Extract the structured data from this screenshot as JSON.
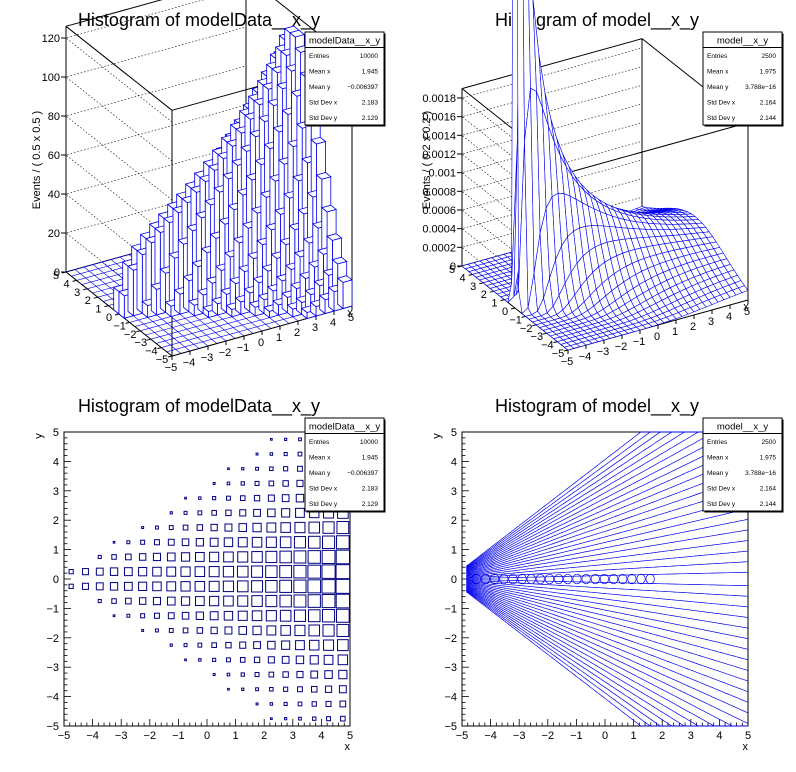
{
  "chart_data": [
    {
      "type": "lego3d",
      "title": "Histogram of modelData__x_y",
      "xlabel": "x",
      "ylabel": "y",
      "zlabel": "Events / ( 0.5 x 0.5 )",
      "xlim": [
        -5,
        5
      ],
      "ylim": [
        -5,
        5
      ],
      "zlim": [
        0,
        126
      ],
      "x_ticks": [
        "−5",
        "−4",
        "−3",
        "−2",
        "−1",
        "0",
        "1",
        "2",
        "3",
        "4",
        "5"
      ],
      "y_ticks": [
        "−5",
        "−4",
        "−3",
        "−2",
        "−1",
        "0",
        "1",
        "2",
        "3",
        "4",
        "5"
      ],
      "z_ticks": [
        "0",
        "20",
        "40",
        "60",
        "80",
        "100",
        "120"
      ],
      "z_tick_values": [
        0,
        20,
        40,
        60,
        80,
        100,
        120
      ],
      "stats": {
        "name": "modelData__x_y",
        "rows": [
          {
            "label": "Entries",
            "value": "10000"
          },
          {
            "label": "Mean x",
            "value": "1.945"
          },
          {
            "label": "Mean y",
            "value": "−0.006397"
          },
          {
            "label": "Std Dev x",
            "value": "2.183"
          },
          {
            "label": "Std Dev y",
            "value": "2.129"
          }
        ]
      }
    },
    {
      "type": "surface3d",
      "title": "Histogram of model__x_y",
      "xlabel": "x",
      "ylabel": "y",
      "zlabel": "Events / ( 0.2 x 0.2 )",
      "xlim": [
        -5,
        5
      ],
      "ylim": [
        -5,
        5
      ],
      "zlim": [
        0,
        0.0019
      ],
      "x_ticks": [
        "−5",
        "−4",
        "−3",
        "−2",
        "−1",
        "0",
        "1",
        "2",
        "3",
        "4",
        "5"
      ],
      "y_ticks": [
        "−5",
        "−4",
        "−3",
        "−2",
        "−1",
        "0",
        "1",
        "2",
        "3",
        "4",
        "5"
      ],
      "z_ticks": [
        "0",
        "0.0002",
        "0.0004",
        "0.0006",
        "0.0008",
        "0.001",
        "0.0012",
        "0.0014",
        "0.0016",
        "0.0018"
      ],
      "z_tick_values": [
        0,
        0.0002,
        0.0004,
        0.0006,
        0.0008,
        0.001,
        0.0012,
        0.0014,
        0.0016,
        0.0018
      ],
      "stats": {
        "name": "model__x_y",
        "rows": [
          {
            "label": "Entries",
            "value": "2500"
          },
          {
            "label": "Mean x",
            "value": "1.975"
          },
          {
            "label": "Mean y",
            "value": "3.788e−16"
          },
          {
            "label": "Std Dev x",
            "value": "2.164"
          },
          {
            "label": "Std Dev y",
            "value": "2.144"
          }
        ]
      }
    },
    {
      "type": "box2d",
      "title": "Histogram of modelData__x_y",
      "xlabel": "x",
      "ylabel": "y",
      "xlim": [
        -5,
        5
      ],
      "ylim": [
        -5,
        5
      ],
      "x_ticks": [
        "−5",
        "−4",
        "−3",
        "−2",
        "−1",
        "0",
        "1",
        "2",
        "3",
        "4",
        "5"
      ],
      "y_ticks": [
        "−5",
        "−4",
        "−3",
        "−2",
        "−1",
        "0",
        "1",
        "2",
        "3",
        "4",
        "5"
      ],
      "stats": {
        "name": "modelData__x_y",
        "rows": [
          {
            "label": "Entries",
            "value": "10000"
          },
          {
            "label": "Mean x",
            "value": "1.945"
          },
          {
            "label": "Mean y",
            "value": "−0.006397"
          },
          {
            "label": "Std Dev x",
            "value": "2.183"
          },
          {
            "label": "Std Dev y",
            "value": "2.129"
          }
        ]
      }
    },
    {
      "type": "contour",
      "title": "Histogram of model__x_y",
      "xlabel": "x",
      "ylabel": "y",
      "xlim": [
        -5,
        5
      ],
      "ylim": [
        -5,
        5
      ],
      "x_ticks": [
        "−5",
        "−4",
        "−3",
        "−2",
        "−1",
        "0",
        "1",
        "2",
        "3",
        "4",
        "5"
      ],
      "y_ticks": [
        "−5",
        "−4",
        "−3",
        "−2",
        "−1",
        "0",
        "1",
        "2",
        "3",
        "4",
        "5"
      ],
      "stats": {
        "name": "model__x_y",
        "rows": [
          {
            "label": "Entries",
            "value": "2500"
          },
          {
            "label": "Mean x",
            "value": "1.975"
          },
          {
            "label": "Mean y",
            "value": "3.788e−16"
          },
          {
            "label": "Std Dev x",
            "value": "2.164"
          },
          {
            "label": "Std Dev y",
            "value": "2.144"
          }
        ]
      }
    }
  ],
  "colors": {
    "line": "#0000ee",
    "frame": "#000000",
    "bar_fill": "#ffffff",
    "background": "#ffffff"
  }
}
